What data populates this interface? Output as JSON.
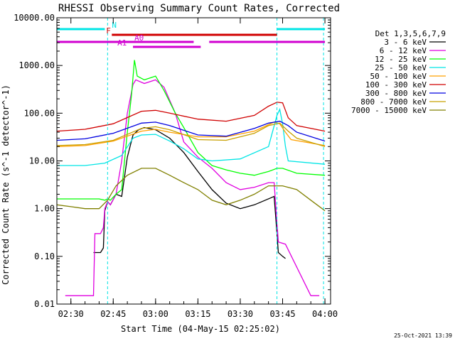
{
  "chart_data": {
    "type": "line",
    "title": "RHESSI Observing Summary Count Rates, Corrected",
    "xlabel": "Start Time (04-May-15 02:25:02)",
    "ylabel": "Corrected Count Rate (s^-1 detector^-1)",
    "yscale": "log",
    "ylim": [
      0.01,
      10000
    ],
    "xlim": [
      "02:25:02",
      "04:02:00"
    ],
    "y_ticks": [
      "10000.00",
      "1000.00",
      "100.00",
      "10.00",
      "1.00",
      "0.10",
      "0.01"
    ],
    "x_ticks": [
      "02:30",
      "02:45",
      "03:00",
      "03:15",
      "03:30",
      "03:45",
      "04:00"
    ],
    "grid": false,
    "legend_title": "Det 1,3,5,6,7,9",
    "legend_placement": "right",
    "colors": {
      "3 - 6 keV": "#000000",
      "6 - 12 keV": "#e000e0",
      "12 - 25 keV": "#00ff00",
      "25 - 50 keV": "#00e5e5",
      "50 - 100 keV": "#ffa000",
      "100 - 300 keV": "#d00000",
      "300 - 800 keV": "#0000e0",
      "800 - 7000 keV": "#c8a000",
      "7000 - 15000 keV": "#808000",
      "flags_cyan": "#00e5e5",
      "flags_red": "#d00000",
      "flags_magenta": "#d000d0"
    },
    "series": [
      {
        "name": "3 - 6 keV",
        "x": [
          "02:38:00",
          "02:40:30",
          "02:41:30",
          "02:42:00",
          "02:43:00",
          "02:44:00",
          "02:46:00",
          "02:48:00",
          "02:50:00",
          "02:52:00",
          "02:54:00",
          "02:56:00",
          "03:00:00",
          "03:05:00",
          "03:10:00",
          "03:15:00",
          "03:20:00",
          "03:25:00",
          "03:30:00",
          "03:35:00",
          "03:42:00",
          "03:43:00",
          "03:43:30",
          "03:45:00",
          "03:46:00"
        ],
        "y": [
          0.12,
          0.12,
          0.15,
          0.9,
          1.4,
          1.2,
          2,
          1.8,
          12,
          35,
          45,
          50,
          45,
          30,
          15,
          6,
          2.5,
          1.3,
          1.0,
          1.2,
          1.8,
          0.3,
          0.12,
          0.1,
          0.09
        ]
      },
      {
        "name": "6 - 12 keV",
        "x": [
          "02:28:00",
          "02:38:00",
          "02:38:30",
          "02:40:30",
          "02:41:30",
          "02:42:00",
          "02:43:00",
          "02:44:00",
          "02:46:00",
          "02:48:00",
          "02:50:00",
          "02:52:00",
          "02:53:00",
          "02:56:00",
          "03:00:00",
          "03:03:00",
          "03:07:00",
          "03:10:00",
          "03:15:00",
          "03:20:00",
          "03:25:00",
          "03:30:00",
          "03:35:00",
          "03:40:00",
          "03:42:00",
          "03:43:00",
          "03:43:30",
          "03:46:00",
          "03:55:00",
          "03:58:00"
        ],
        "y": [
          0.015,
          0.015,
          0.3,
          0.3,
          0.4,
          1.0,
          1.4,
          1.2,
          2,
          10,
          100,
          400,
          500,
          420,
          500,
          350,
          100,
          25,
          12,
          7,
          3.5,
          2.5,
          2.8,
          3.5,
          3.5,
          0.5,
          0.2,
          0.18,
          0.015,
          0.015
        ]
      },
      {
        "name": "12 - 25 keV",
        "x": [
          "02:25:02",
          "02:35:00",
          "02:40:00",
          "02:42:00",
          "02:43:00",
          "02:44:00",
          "02:46:00",
          "02:48:00",
          "02:50:00",
          "02:51:30",
          "02:52:30",
          "02:53:30",
          "02:56:00",
          "03:00:00",
          "03:03:00",
          "03:07:00",
          "03:10:00",
          "03:15:00",
          "03:20:00",
          "03:25:00",
          "03:30:00",
          "03:35:00",
          "03:40:00",
          "03:43:00",
          "03:45:00",
          "03:50:00",
          "04:00:00"
        ],
        "y": [
          1.6,
          1.6,
          1.6,
          1.5,
          1.6,
          1.5,
          2.0,
          2.5,
          40,
          250,
          1300,
          600,
          500,
          600,
          300,
          100,
          50,
          15,
          8,
          6.5,
          5.5,
          5,
          6,
          7,
          7,
          5.5,
          5
        ]
      },
      {
        "name": "25 - 50 keV",
        "x": [
          "02:25:02",
          "02:35:00",
          "02:42:00",
          "02:48:00",
          "02:52:00",
          "02:55:00",
          "03:00:00",
          "03:05:00",
          "03:10:00",
          "03:15:00",
          "03:20:00",
          "03:30:00",
          "03:40:00",
          "03:43:00",
          "03:44:00",
          "03:45:00",
          "03:46:00",
          "03:47:00",
          "04:00:00"
        ],
        "y": [
          8,
          8,
          9,
          13,
          30,
          35,
          36,
          26,
          18,
          11,
          10,
          11,
          20,
          90,
          120,
          60,
          20,
          10,
          8.5
        ]
      },
      {
        "name": "50 - 100 keV",
        "x": [
          "02:25:02",
          "02:35:00",
          "02:45:00",
          "02:55:00",
          "03:00:00",
          "03:05:00",
          "03:15:00",
          "03:25:00",
          "03:35:00",
          "03:42:00",
          "03:44:00",
          "03:46:00",
          "03:48:00",
          "04:00:00"
        ],
        "y": [
          20,
          21,
          26,
          42,
          46,
          40,
          32,
          32,
          42,
          65,
          60,
          40,
          28,
          21
        ]
      },
      {
        "name": "100 - 300 keV",
        "x": [
          "02:25:02",
          "02:35:00",
          "02:45:00",
          "02:55:00",
          "03:00:00",
          "03:05:00",
          "03:15:00",
          "03:25:00",
          "03:35:00",
          "03:40:00",
          "03:43:00",
          "03:45:00",
          "03:47:00",
          "03:50:00",
          "04:00:00"
        ],
        "y": [
          42,
          46,
          60,
          110,
          115,
          100,
          75,
          68,
          90,
          140,
          170,
          165,
          80,
          55,
          42
        ]
      },
      {
        "name": "300 - 800 keV",
        "x": [
          "02:25:02",
          "02:35:00",
          "02:45:00",
          "02:55:00",
          "03:00:00",
          "03:05:00",
          "03:15:00",
          "03:25:00",
          "03:35:00",
          "03:40:00",
          "03:44:00",
          "03:47:00",
          "03:50:00",
          "04:00:00"
        ],
        "y": [
          27,
          29,
          38,
          62,
          65,
          55,
          35,
          33,
          48,
          62,
          68,
          55,
          40,
          26
        ]
      },
      {
        "name": "800 - 7000 keV",
        "x": [
          "02:25:02",
          "02:35:00",
          "02:45:00",
          "02:55:00",
          "03:00:00",
          "03:05:00",
          "03:15:00",
          "03:25:00",
          "03:35:00",
          "03:40:00",
          "03:44:00",
          "03:47:00",
          "03:50:00",
          "04:00:00"
        ],
        "y": [
          21,
          22,
          27,
          48,
          52,
          45,
          28,
          27,
          38,
          55,
          62,
          42,
          30,
          20
        ]
      },
      {
        "name": "7000 - 15000 keV",
        "x": [
          "02:25:02",
          "02:30:00",
          "02:35:00",
          "02:40:00",
          "02:43:00",
          "02:46:00",
          "02:50:00",
          "02:55:00",
          "03:00:00",
          "03:05:00",
          "03:10:00",
          "03:15:00",
          "03:20:00",
          "03:25:00",
          "03:30:00",
          "03:35:00",
          "03:40:00",
          "03:45:00",
          "03:50:00",
          "03:55:00",
          "04:00:00"
        ],
        "y": [
          1.2,
          1.1,
          1.0,
          1.0,
          1.5,
          3,
          5,
          7,
          7,
          5,
          3.5,
          2.5,
          1.5,
          1.2,
          1.5,
          2.0,
          3,
          3,
          2.5,
          1.5,
          0.9
        ]
      }
    ],
    "flags": [
      {
        "label": "N",
        "color": "cyan",
        "intervals": [
          [
            "02:25:02",
            "02:42:00"
          ],
          [
            "03:43:00",
            "04:00:00"
          ]
        ]
      },
      {
        "label": "F",
        "color": "red",
        "intervals": [
          [
            "02:44:30",
            "03:43:00"
          ]
        ]
      },
      {
        "label": "A0",
        "color": "magenta",
        "intervals": [
          [
            "02:25:02",
            "03:13:30"
          ],
          [
            "03:19:00",
            "04:00:00"
          ]
        ]
      },
      {
        "label": "A1",
        "color": "magenta",
        "intervals": [
          [
            "02:52:00",
            "03:16:00"
          ]
        ]
      }
    ],
    "vlines": [
      {
        "x": "02:43:00",
        "color": "cyan"
      },
      {
        "x": "03:43:00",
        "color": "cyan"
      },
      {
        "x": "03:59:30",
        "color": "cyan"
      }
    ],
    "timestamp": "25-Oct-2021 13:39"
  }
}
